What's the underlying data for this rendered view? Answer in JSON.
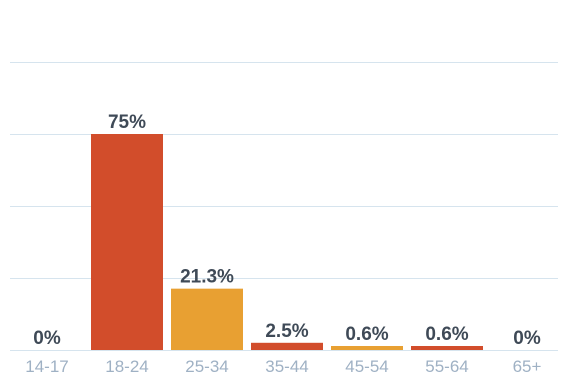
{
  "chart_data": {
    "type": "bar",
    "categories": [
      "14-17",
      "18-24",
      "25-34",
      "35-44",
      "45-54",
      "55-64",
      "65+"
    ],
    "values": [
      0,
      75,
      21.3,
      2.5,
      0.6,
      0.6,
      0
    ],
    "value_labels": [
      "0%",
      "75%",
      "21.3%",
      "2.5%",
      "0.6%",
      "0.6%",
      "0%"
    ],
    "bar_colors": [
      "#d24d2b",
      "#d24d2b",
      "#e8a032",
      "#d24d2b",
      "#e8a032",
      "#d24d2b",
      "#d24d2b"
    ],
    "ylim": [
      0,
      100
    ],
    "grid": true,
    "title": "",
    "xlabel": "",
    "ylabel": ""
  },
  "style": {
    "grid_color": "#d6e4ee",
    "axis_label_color": "#9fb1c4",
    "value_label_color": "#3f4a57"
  }
}
